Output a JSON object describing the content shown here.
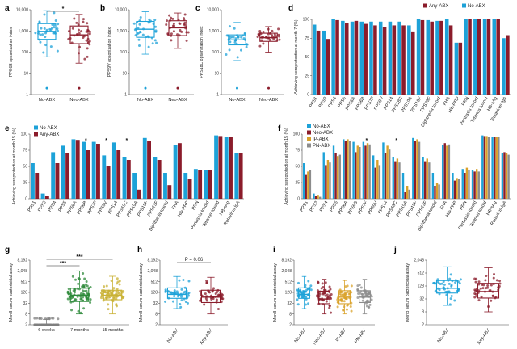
{
  "colors": {
    "no_abx": "#1da2d8",
    "any_abx": "#8b1c2b",
    "neo_abx": "#8b1c2b",
    "ip_abx": "#d9a12a",
    "pn_abx": "#8c8c8c",
    "gray_week": "#7f7f7f",
    "green_7m": "#2d8a3a",
    "yellow_15m": "#c9b235"
  },
  "chart_data": [
    {
      "id": "a",
      "type": "box",
      "ylabel": "PPS6B opsonization index",
      "yscale": "log",
      "yticks": [
        "1",
        "10",
        "100",
        "1,000",
        "10,000"
      ],
      "categories": [
        "No-ABX",
        "Neo-ABX"
      ],
      "boxes": [
        {
          "q1": 400,
          "median": 950,
          "q3": 2200,
          "whisker_low": 60,
          "whisker_high": 9000
        },
        {
          "q1": 250,
          "median": 650,
          "q3": 1700,
          "whisker_low": 30,
          "whisker_high": 6000
        }
      ],
      "significance": "*"
    },
    {
      "id": "b",
      "type": "box",
      "ylabel": "PPS9V opsonization index",
      "yscale": "log",
      "yticks": [
        "1",
        "10",
        "100",
        "1,000",
        "10,000"
      ],
      "categories": [
        "No-ABX",
        "Neo-ABX"
      ],
      "boxes": [
        {
          "q1": 500,
          "median": 1200,
          "q3": 2800,
          "whisker_low": 80,
          "whisker_high": 8000
        },
        {
          "q1": 600,
          "median": 1400,
          "q3": 3000,
          "whisker_low": 150,
          "whisker_high": 7000
        }
      ]
    },
    {
      "id": "c",
      "type": "box",
      "ylabel": "PPS18C opsonization index",
      "yscale": "log",
      "yticks": [
        "1",
        "10",
        "100",
        "1,000",
        "10,000"
      ],
      "categories": [
        "No-ABX",
        "Neo-ABX"
      ],
      "boxes": [
        {
          "q1": 220,
          "median": 380,
          "q3": 650,
          "whisker_low": 40,
          "whisker_high": 2500
        },
        {
          "q1": 320,
          "median": 480,
          "q3": 780,
          "whisker_low": 100,
          "whisker_high": 1600
        }
      ]
    },
    {
      "id": "d",
      "type": "bar",
      "ylabel": "Achieving seroprotection at month 7 (%)",
      "ylim": [
        0,
        100
      ],
      "yticks": [
        "0",
        "25",
        "50",
        "75",
        "100"
      ],
      "legend": [
        "Any-ABX",
        "No-ABX"
      ],
      "categories": [
        "PPS1",
        "PPS3",
        "PPS4",
        "PPS5",
        "PPS6A",
        "PPS6B",
        "PPS7F",
        "PPS9V",
        "PPS14",
        "PPS18C",
        "PPS19A",
        "PPS19F",
        "PPS23F",
        "Diphtheria toxoid",
        "FHA",
        "Hib-PRP",
        "PRN",
        "Pertussis toxoid",
        "Tetanus toxoid",
        "HB-sAg",
        "Rotavirus IgA"
      ],
      "series": [
        {
          "name": "No-ABX",
          "values": [
            93,
            85,
            100,
            98,
            97,
            97,
            97,
            97,
            97,
            97,
            92,
            100,
            99,
            98,
            100,
            69,
            100,
            100,
            100,
            100,
            75
          ]
        },
        {
          "name": "Any-ABX",
          "values": [
            85,
            74,
            99,
            95,
            98,
            94,
            92,
            90,
            92,
            92,
            84,
            99,
            97,
            98,
            92,
            69,
            100,
            100,
            100,
            100,
            79
          ]
        }
      ]
    },
    {
      "id": "e",
      "type": "bar",
      "ylabel": "Achieving seroprotection at month 15 (%)",
      "ylim": [
        0,
        100
      ],
      "yticks": [
        "0",
        "25",
        "50",
        "75",
        "100"
      ],
      "legend": [
        "No-ABX",
        "Any-ABX"
      ],
      "categories": [
        "PPS1",
        "PPS3",
        "PPS4",
        "PPS5",
        "PPS6A",
        "PPS6B",
        "PPS7F",
        "PPS9V",
        "PPS14",
        "PPS18C",
        "PPS19A",
        "PPS19F",
        "PPS23F",
        "Diphtheria toxoid",
        "FHA",
        "Hib-PRP",
        "PRN",
        "Pertussis toxoid",
        "Tetanus toxoid",
        "HB-sAg",
        "Rotavirus IgA"
      ],
      "series": [
        {
          "name": "No-ABX",
          "values": [
            55,
            8,
            72,
            82,
            92,
            88,
            88,
            67,
            87,
            65,
            40,
            94,
            65,
            40,
            83,
            40,
            46,
            45,
            98,
            96,
            70
          ]
        },
        {
          "name": "Any-ABX",
          "values": [
            40,
            5,
            55,
            70,
            91,
            75,
            85,
            50,
            75,
            60,
            14,
            90,
            60,
            21,
            86,
            30,
            44,
            44,
            97,
            96,
            70
          ]
        }
      ],
      "stars": [
        5,
        7,
        9
      ]
    },
    {
      "id": "f",
      "type": "bar",
      "ylabel": "Achieving seroprotection at month 15 (%)",
      "ylim": [
        0,
        100
      ],
      "yticks": [
        "0",
        "25",
        "50",
        "75",
        "100"
      ],
      "legend": [
        "No-ABX",
        "Neo-ABX",
        "IP-ABX",
        "PN-ABX"
      ],
      "categories": [
        "PPS1",
        "PPS3",
        "PPS4",
        "PPS5",
        "PPS6A",
        "PPS6B",
        "PPS7F",
        "PPS9V",
        "PPS14",
        "PPS18C",
        "PPS19A",
        "PPS19F",
        "PPS23F",
        "Diphtheria toxoid",
        "FHA",
        "Hib-PRP",
        "PRN",
        "Pertussis toxoid",
        "Tetanus toxoid",
        "HB-sAg",
        "Rotavirus IgA"
      ],
      "series": [
        {
          "name": "No-ABX",
          "values": [
            55,
            8,
            72,
            82,
            92,
            88,
            88,
            67,
            87,
            65,
            40,
            94,
            65,
            40,
            83,
            40,
            46,
            45,
            98,
            96,
            70
          ]
        },
        {
          "name": "Neo-ABX",
          "values": [
            38,
            4,
            52,
            70,
            90,
            72,
            82,
            48,
            70,
            58,
            10,
            90,
            58,
            20,
            86,
            28,
            40,
            42,
            97,
            96,
            72
          ]
        },
        {
          "name": "IP-ABX",
          "values": [
            42,
            6,
            60,
            66,
            92,
            82,
            86,
            60,
            82,
            62,
            20,
            92,
            62,
            25,
            82,
            32,
            48,
            46,
            97,
            95,
            70
          ]
        },
        {
          "name": "PN-ABX",
          "values": [
            44,
            3,
            56,
            68,
            90,
            80,
            84,
            52,
            76,
            56,
            14,
            88,
            56,
            22,
            84,
            30,
            44,
            42,
            96,
            96,
            68
          ]
        }
      ],
      "stars": [
        6,
        9
      ]
    },
    {
      "id": "g",
      "type": "box",
      "ylabel": "MenB serum bactericidal assay",
      "yscale": "log2",
      "yticks": [
        "2",
        "8",
        "32",
        "128",
        "512",
        "2,048",
        "8,192"
      ],
      "categories": [
        "6 weeks",
        "7 months",
        "15 months"
      ],
      "boxes": [
        {
          "q1": 2,
          "median": 2,
          "q3": 2,
          "whisker_low": 2,
          "whisker_high": 4
        },
        {
          "q1": 40,
          "median": 90,
          "q3": 220,
          "whisker_low": 8,
          "whisker_high": 2048
        },
        {
          "q1": 50,
          "median": 90,
          "q3": 170,
          "whisker_low": 8,
          "whisker_high": 1024
        }
      ],
      "significance": [
        "***",
        "***"
      ]
    },
    {
      "id": "h",
      "type": "box",
      "ylabel": "MenB serum bactericidal assay",
      "yscale": "log2",
      "yticks": [
        "2",
        "8",
        "32",
        "128",
        "512",
        "2,048",
        "8,192"
      ],
      "categories": [
        "No-ABX",
        "Any-ABX"
      ],
      "boxes": [
        {
          "q1": 60,
          "median": 100,
          "q3": 230,
          "whisker_low": 16,
          "whisker_high": 1000
        },
        {
          "q1": 35,
          "median": 70,
          "q3": 170,
          "whisker_low": 8,
          "whisker_high": 900
        }
      ],
      "annotation": "P = 0.06"
    },
    {
      "id": "i",
      "type": "box",
      "ylabel": "MenB serum bactericidal assay",
      "yscale": "log2",
      "yticks": [
        "2",
        "8",
        "32",
        "128",
        "512",
        "2,048",
        "8,192"
      ],
      "categories": [
        "No-ABX",
        "Neo-ABX",
        "IP-ABX",
        "PN-ABX"
      ],
      "boxes": [
        {
          "q1": 60,
          "median": 100,
          "q3": 230,
          "whisker_low": 16,
          "whisker_high": 1000
        },
        {
          "q1": 30,
          "median": 55,
          "q3": 150,
          "whisker_low": 8,
          "whisker_high": 700
        },
        {
          "q1": 30,
          "median": 70,
          "q3": 160,
          "whisker_low": 8,
          "whisker_high": 600
        },
        {
          "q1": 35,
          "median": 70,
          "q3": 160,
          "whisker_low": 8,
          "whisker_high": 700
        }
      ]
    },
    {
      "id": "j",
      "type": "box",
      "ylabel": "MenB serum bactericidal assay",
      "yscale": "log2",
      "yticks": [
        "2",
        "8",
        "32",
        "128",
        "512",
        "2,048"
      ],
      "categories": [
        "No-ABX",
        "Any-ABX"
      ],
      "boxes": [
        {
          "q1": 60,
          "median": 100,
          "q3": 230,
          "whisker_low": 16,
          "whisker_high": 1000
        },
        {
          "q1": 35,
          "median": 70,
          "q3": 170,
          "whisker_low": 8,
          "whisker_high": 900
        }
      ]
    }
  ]
}
